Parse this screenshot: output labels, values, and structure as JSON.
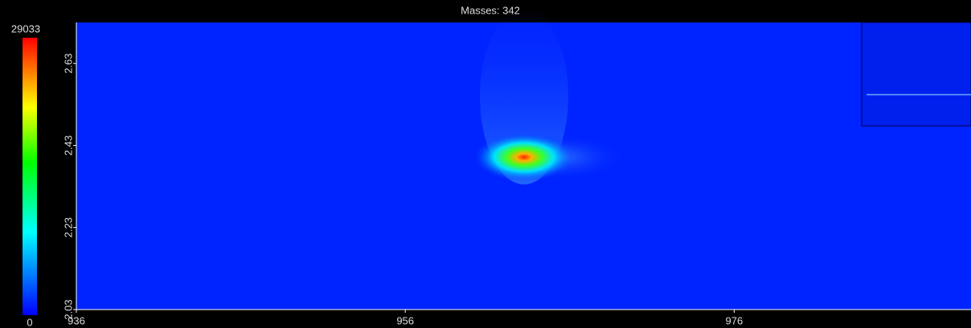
{
  "chart_data": {
    "type": "heatmap",
    "title": "Masses: 342",
    "xlim": [
      936,
      990.4
    ],
    "xticks": [
      936,
      956,
      976
    ],
    "ylim": [
      2.03,
      2.73
    ],
    "yticks": [
      2.03,
      2.23,
      2.43,
      2.63
    ],
    "clim": [
      0,
      29033
    ]
  }
}
